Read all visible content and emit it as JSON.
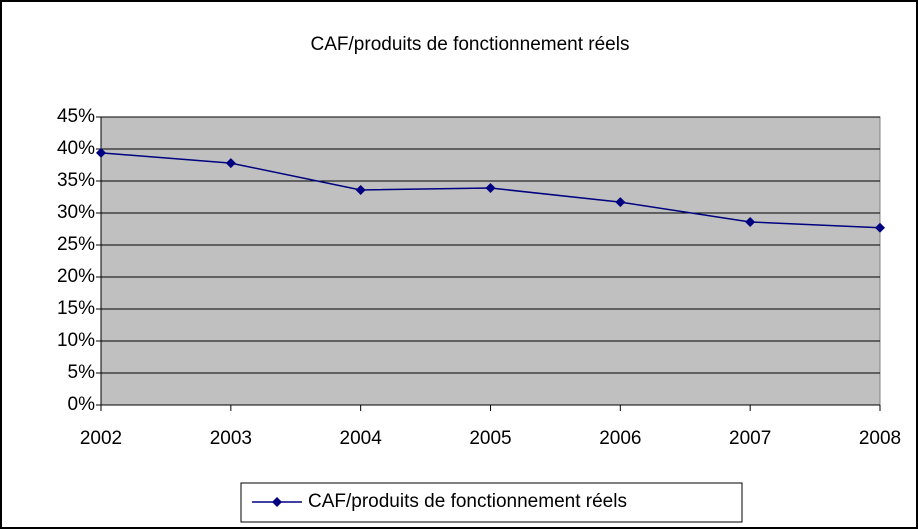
{
  "chart_data": {
    "type": "line",
    "title": "CAF/produits de fonctionnement réels",
    "categories": [
      "2002",
      "2003",
      "2004",
      "2005",
      "2006",
      "2007",
      "2008"
    ],
    "series": [
      {
        "name": "CAF/produits de fonctionnement réels",
        "color": "#000080",
        "values": [
          39.4,
          37.8,
          33.6,
          33.9,
          31.7,
          28.6,
          27.7
        ]
      }
    ],
    "ylim": [
      0,
      45
    ],
    "yticks": [
      {
        "value": 0,
        "label": "0%"
      },
      {
        "value": 5,
        "label": "5%"
      },
      {
        "value": 10,
        "label": "10%"
      },
      {
        "value": 15,
        "label": "15%"
      },
      {
        "value": 20,
        "label": "20%"
      },
      {
        "value": 25,
        "label": "25%"
      },
      {
        "value": 30,
        "label": "30%"
      },
      {
        "value": 35,
        "label": "35%"
      },
      {
        "value": 40,
        "label": "40%"
      },
      {
        "value": 45,
        "label": "45%"
      }
    ],
    "grid": true,
    "legend": "bottom"
  }
}
